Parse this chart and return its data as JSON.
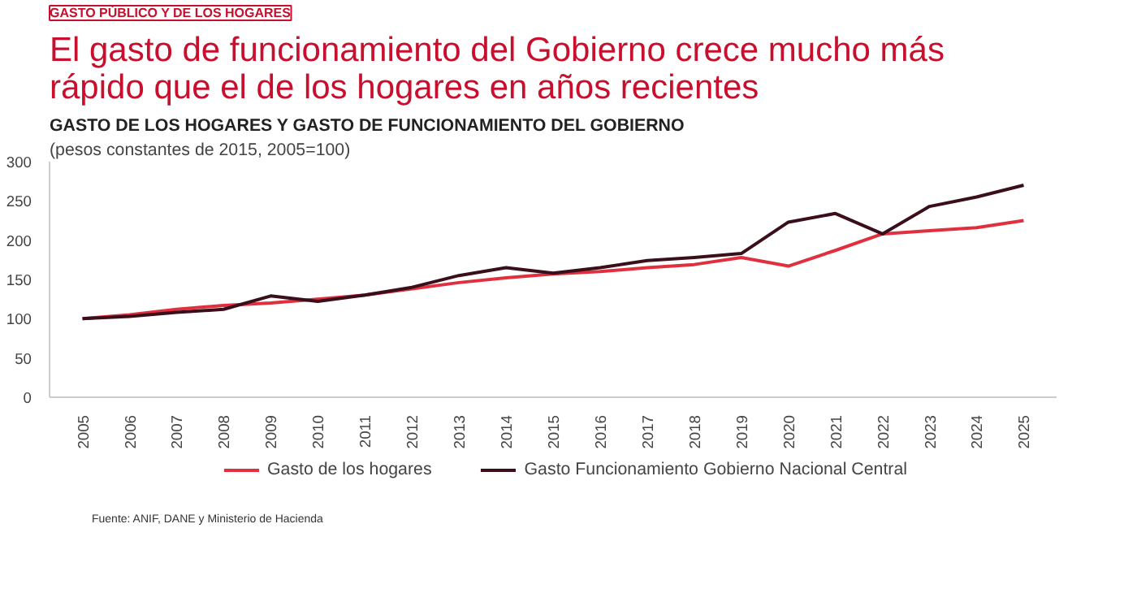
{
  "chart_data": {
    "type": "line",
    "title": "El gasto de funcionamiento del Gobierno crece mucho más rápido que el de los hogares en años recientes",
    "subtitle": "GASTO DE LOS HOGARES Y GASTO DE FUNCIONAMIENTO DEL GOBIERNO",
    "ylabel": "(pesos constantes de 2015, 2005=100)",
    "annotations": [
      "GASTO PÚBLICO Y DE LOS HOGARES",
      "Fuente: ANIF, DANE y Ministerio de Hacienda"
    ],
    "categories": [
      "2005",
      "2006",
      "2007",
      "2008",
      "2009",
      "2010",
      "2011",
      "2012",
      "2013",
      "2014",
      "2015",
      "2016",
      "2017",
      "2018",
      "2019",
      "2020",
      "2021",
      "2022",
      "2023",
      "2024",
      "2025"
    ],
    "series": [
      {
        "name": "Gasto de los hogares",
        "color": "#e0303f",
        "values": [
          100,
          105,
          112,
          117,
          120,
          125,
          130,
          138,
          146,
          152,
          157,
          160,
          165,
          169,
          178,
          167,
          187,
          208,
          212,
          216,
          225
        ]
      },
      {
        "name": "Gasto Funcionamiento Gobierno Nacional Central",
        "color": "#3a0f1a",
        "values": [
          100,
          103,
          108,
          112,
          129,
          122,
          130,
          140,
          155,
          165,
          158,
          165,
          174,
          178,
          183,
          223,
          234,
          208,
          243,
          255,
          270
        ]
      }
    ],
    "ylim": [
      0,
      300
    ],
    "yticks": [
      0,
      50,
      100,
      150,
      200,
      250,
      300
    ],
    "grid": false,
    "legend": "bottom",
    "marker": "none",
    "line_style": "solid"
  }
}
